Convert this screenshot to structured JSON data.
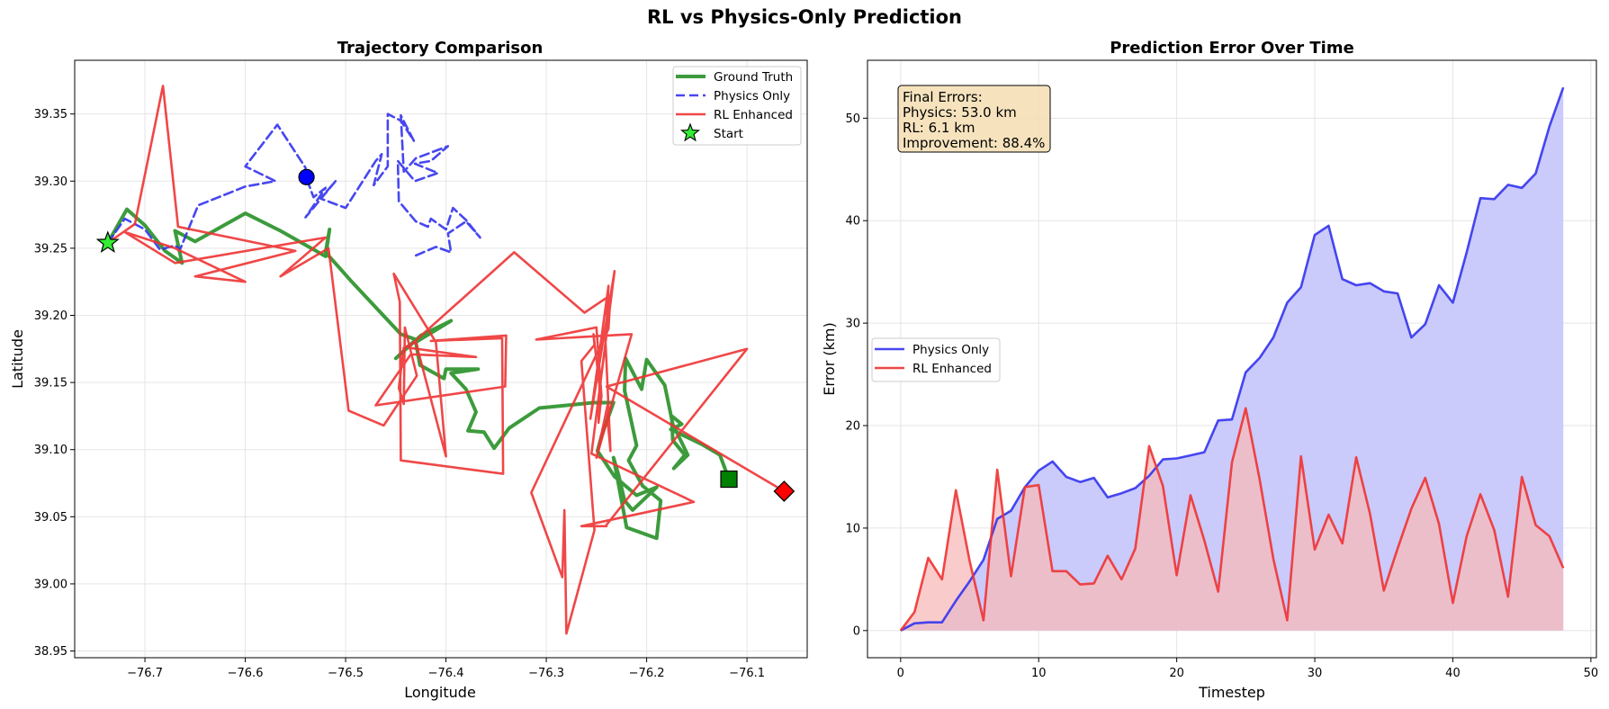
{
  "figure_title": "RL vs Physics-Only Prediction",
  "colors": {
    "ground_truth": "#1a8a1a",
    "physics": "#3333ee",
    "rl": "#ee3333",
    "physics_fill": "#c4c4fb",
    "rl_fill": "#f7b9b9",
    "start": "#33ee33",
    "annot_bg": "#f5deb3"
  },
  "chart_data": [
    {
      "type": "line",
      "title": "Trajectory Comparison",
      "xlabel": "Longitude",
      "ylabel": "Latitude",
      "xlim": [
        -76.77,
        -76.04
      ],
      "ylim": [
        38.945,
        39.39
      ],
      "xticks": [
        -76.7,
        -76.6,
        -76.5,
        -76.4,
        -76.3,
        -76.2,
        -76.1
      ],
      "xtick_labels": [
        "−76.7",
        "−76.6",
        "−76.5",
        "−76.4",
        "−76.3",
        "−76.2",
        "−76.1"
      ],
      "yticks": [
        38.95,
        39.0,
        39.05,
        39.1,
        39.15,
        39.2,
        39.25,
        39.3,
        39.35
      ],
      "ytick_labels": [
        "38.95",
        "39.00",
        "39.05",
        "39.10",
        "39.15",
        "39.20",
        "39.25",
        "39.30",
        "39.35"
      ],
      "grid": true,
      "legend_position": "top-right",
      "series": [
        {
          "name": "Ground Truth",
          "style": "solid-thick",
          "points": [
            [
              -76.737,
              39.254
            ],
            [
              -76.718,
              39.279
            ],
            [
              -76.7,
              39.267
            ],
            [
              -76.68,
              39.248
            ],
            [
              -76.663,
              39.239
            ],
            [
              -76.67,
              39.263
            ],
            [
              -76.65,
              39.255
            ],
            [
              -76.6,
              39.276
            ],
            [
              -76.565,
              39.263
            ],
            [
              -76.52,
              39.244
            ],
            [
              -76.516,
              39.264
            ],
            [
              -76.52,
              39.247
            ],
            [
              -76.495,
              39.226
            ],
            [
              -76.445,
              39.186
            ],
            [
              -76.43,
              39.182
            ],
            [
              -76.45,
              39.168
            ],
            [
              -76.425,
              39.185
            ],
            [
              -76.395,
              39.196
            ],
            [
              -76.43,
              39.18
            ],
            [
              -76.426,
              39.163
            ],
            [
              -76.402,
              39.153
            ],
            [
              -76.4,
              39.16
            ],
            [
              -76.368,
              39.16
            ],
            [
              -76.395,
              39.157
            ],
            [
              -76.38,
              39.145
            ],
            [
              -76.37,
              39.128
            ],
            [
              -76.378,
              39.114
            ],
            [
              -76.362,
              39.113
            ],
            [
              -76.352,
              39.101
            ],
            [
              -76.337,
              39.116
            ],
            [
              -76.307,
              39.131
            ],
            [
              -76.253,
              39.135
            ],
            [
              -76.233,
              39.135
            ],
            [
              -76.245,
              39.11
            ],
            [
              -76.249,
              39.099
            ],
            [
              -76.232,
              39.08
            ],
            [
              -76.21,
              39.066
            ],
            [
              -76.19,
              39.072
            ],
            [
              -76.214,
              39.055
            ],
            [
              -76.222,
              39.062
            ],
            [
              -76.228,
              39.081
            ],
            [
              -76.233,
              39.094
            ],
            [
              -76.22,
              39.042
            ],
            [
              -76.19,
              39.034
            ],
            [
              -76.186,
              39.062
            ],
            [
              -76.204,
              39.073
            ],
            [
              -76.218,
              39.092
            ],
            [
              -76.21,
              39.103
            ],
            [
              -76.222,
              39.144
            ],
            [
              -76.221,
              39.168
            ],
            [
              -76.205,
              39.145
            ],
            [
              -76.2,
              39.167
            ],
            [
              -76.182,
              39.148
            ],
            [
              -76.174,
              39.119
            ],
            [
              -76.159,
              39.096
            ],
            [
              -76.173,
              39.086
            ],
            [
              -76.162,
              39.096
            ],
            [
              -76.174,
              39.107
            ],
            [
              -76.175,
              39.125
            ],
            [
              -76.165,
              39.119
            ],
            [
              -76.176,
              39.115
            ],
            [
              -76.17,
              39.113
            ],
            [
              -76.145,
              39.104
            ],
            [
              -76.127,
              39.096
            ],
            [
              -76.118,
              39.078
            ]
          ]
        },
        {
          "name": "Physics Only",
          "style": "dashed",
          "points": [
            [
              -76.737,
              39.254
            ],
            [
              -76.72,
              39.272
            ],
            [
              -76.7,
              39.264
            ],
            [
              -76.685,
              39.249
            ],
            [
              -76.67,
              39.252
            ],
            [
              -76.665,
              39.249
            ],
            [
              -76.647,
              39.282
            ],
            [
              -76.63,
              39.287
            ],
            [
              -76.6,
              39.296
            ],
            [
              -76.57,
              39.3
            ],
            [
              -76.6,
              39.311
            ],
            [
              -76.568,
              39.342
            ],
            [
              -76.54,
              39.31
            ],
            [
              -76.539,
              39.302
            ],
            [
              -76.532,
              39.288
            ],
            [
              -76.52,
              39.295
            ],
            [
              -76.54,
              39.273
            ],
            [
              -76.51,
              39.3
            ],
            [
              -76.525,
              39.287
            ],
            [
              -76.5,
              39.28
            ],
            [
              -76.47,
              39.315
            ],
            [
              -76.464,
              39.32
            ],
            [
              -76.472,
              39.297
            ],
            [
              -76.458,
              39.311
            ],
            [
              -76.458,
              39.35
            ],
            [
              -76.445,
              39.345
            ],
            [
              -76.432,
              39.33
            ],
            [
              -76.445,
              39.349
            ],
            [
              -76.442,
              39.307
            ],
            [
              -76.43,
              39.317
            ],
            [
              -76.398,
              39.326
            ],
            [
              -76.415,
              39.315
            ],
            [
              -76.431,
              39.313
            ],
            [
              -76.408,
              39.306
            ],
            [
              -76.431,
              39.3
            ],
            [
              -76.448,
              39.315
            ],
            [
              -76.447,
              39.285
            ],
            [
              -76.43,
              39.27
            ],
            [
              -76.418,
              39.266
            ],
            [
              -76.415,
              39.272
            ],
            [
              -76.4,
              39.264
            ],
            [
              -76.393,
              39.28
            ],
            [
              -76.38,
              39.271
            ],
            [
              -76.366,
              39.258
            ],
            [
              -76.38,
              39.27
            ],
            [
              -76.398,
              39.261
            ],
            [
              -76.395,
              39.247
            ],
            [
              -76.41,
              39.251
            ],
            [
              -76.432,
              39.244
            ]
          ]
        },
        {
          "name": "RL Enhanced",
          "style": "solid",
          "points": [
            [
              -76.737,
              39.254
            ],
            [
              -76.71,
              39.268
            ],
            [
              -76.682,
              39.371
            ],
            [
              -76.667,
              39.266
            ],
            [
              -76.55,
              39.248
            ],
            [
              -76.65,
              39.229
            ],
            [
              -76.6,
              39.225
            ],
            [
              -76.67,
              39.25
            ],
            [
              -76.72,
              39.262
            ],
            [
              -76.67,
              39.239
            ],
            [
              -76.52,
              39.258
            ],
            [
              -76.565,
              39.229
            ],
            [
              -76.517,
              39.25
            ],
            [
              -76.497,
              39.129
            ],
            [
              -76.462,
              39.118
            ],
            [
              -76.429,
              39.155
            ],
            [
              -76.441,
              39.191
            ],
            [
              -76.442,
              39.134
            ],
            [
              -76.447,
              39.146
            ],
            [
              -76.442,
              39.176
            ],
            [
              -76.43,
              39.18
            ],
            [
              -76.4,
              39.095
            ],
            [
              -76.41,
              39.18
            ],
            [
              -76.452,
              39.231
            ],
            [
              -76.446,
              39.21
            ],
            [
              -76.445,
              39.092
            ],
            [
              -76.343,
              39.082
            ],
            [
              -76.344,
              39.183
            ],
            [
              -76.415,
              39.181
            ],
            [
              -76.34,
              39.185
            ],
            [
              -76.341,
              39.147
            ],
            [
              -76.47,
              39.133
            ],
            [
              -76.435,
              39.171
            ],
            [
              -76.37,
              39.169
            ],
            [
              -76.438,
              39.176
            ],
            [
              -76.332,
              39.247
            ],
            [
              -76.262,
              39.202
            ],
            [
              -76.236,
              39.215
            ],
            [
              -76.238,
              39.19
            ],
            [
              -76.315,
              39.068
            ],
            [
              -76.284,
              39.005
            ],
            [
              -76.282,
              39.055
            ],
            [
              -76.28,
              38.963
            ],
            [
              -76.252,
              39.04
            ],
            [
              -76.265,
              39.166
            ],
            [
              -76.252,
              39.178
            ],
            [
              -76.253,
              39.186
            ],
            [
              -76.247,
              39.148
            ],
            [
              -76.248,
              39.12
            ],
            [
              -76.245,
              39.14
            ],
            [
              -76.25,
              39.191
            ],
            [
              -76.31,
              39.182
            ],
            [
              -76.215,
              39.186
            ],
            [
              -76.25,
              39.094
            ],
            [
              -76.239,
              39.133
            ],
            [
              -76.239,
              39.123
            ],
            [
              -76.236,
              39.099
            ],
            [
              -76.241,
              39.18
            ],
            [
              -76.238,
              39.222
            ],
            [
              -76.256,
              39.123
            ],
            [
              -76.232,
              39.233
            ],
            [
              -76.255,
              39.097
            ],
            [
              -76.153,
              39.061
            ],
            [
              -76.265,
              39.043
            ],
            [
              -76.24,
              39.043
            ],
            [
              -76.24,
              39.044
            ],
            [
              -76.1,
              39.175
            ],
            [
              -76.24,
              39.147
            ],
            [
              -76.063,
              39.069
            ]
          ]
        }
      ],
      "markers": [
        {
          "name": "Start",
          "shape": "star",
          "point": [
            -76.737,
            39.254
          ]
        },
        {
          "shape": "circle",
          "point": [
            -76.539,
            39.303
          ]
        },
        {
          "shape": "square",
          "point": [
            -76.118,
            39.078
          ]
        },
        {
          "shape": "diamond",
          "point": [
            -76.063,
            39.069
          ]
        }
      ]
    },
    {
      "type": "area",
      "title": "Prediction Error Over Time",
      "xlabel": "Timestep",
      "ylabel": "Error (km)",
      "xlim": [
        -2.4,
        50.4
      ],
      "ylim": [
        -2.65,
        55.65
      ],
      "xticks": [
        0,
        10,
        20,
        30,
        40,
        50
      ],
      "xtick_labels": [
        "0",
        "10",
        "20",
        "30",
        "40",
        "50"
      ],
      "yticks": [
        0,
        10,
        20,
        30,
        40,
        50
      ],
      "ytick_labels": [
        "0",
        "10",
        "20",
        "30",
        "40",
        "50"
      ],
      "grid": true,
      "legend_position": "center-left",
      "x": [
        0,
        1,
        2,
        3,
        4,
        5,
        6,
        7,
        8,
        9,
        10,
        11,
        12,
        13,
        14,
        15,
        16,
        17,
        18,
        19,
        20,
        21,
        22,
        23,
        24,
        25,
        26,
        27,
        28,
        29,
        30,
        31,
        32,
        33,
        34,
        35,
        36,
        37,
        38,
        39,
        40,
        41,
        42,
        43,
        44,
        45,
        46,
        47,
        48
      ],
      "series": [
        {
          "name": "Physics Only",
          "values": [
            0.0,
            0.7,
            0.8,
            0.8,
            2.9,
            4.8,
            6.9,
            10.9,
            11.7,
            14.0,
            15.6,
            16.5,
            15.0,
            14.5,
            14.9,
            13.0,
            13.4,
            13.9,
            15.1,
            16.7,
            16.8,
            17.1,
            17.4,
            20.5,
            20.6,
            25.2,
            26.6,
            28.6,
            32.0,
            33.5,
            38.6,
            39.5,
            34.3,
            33.7,
            33.9,
            33.1,
            32.9,
            28.6,
            29.9,
            33.7,
            32.0,
            36.9,
            42.2,
            42.1,
            43.5,
            43.2,
            44.6,
            49.2,
            53.0
          ]
        },
        {
          "name": "RL Enhanced",
          "values": [
            0.0,
            1.8,
            7.1,
            5.0,
            13.7,
            6.8,
            1.0,
            15.7,
            5.3,
            14.0,
            14.2,
            5.8,
            5.8,
            4.5,
            4.6,
            7.3,
            5.0,
            8.0,
            18.0,
            14.1,
            5.4,
            13.2,
            8.8,
            3.8,
            16.4,
            21.7,
            14.8,
            7.0,
            1.0,
            17.0,
            7.9,
            11.3,
            8.5,
            16.9,
            11.4,
            3.9,
            8.0,
            11.9,
            14.9,
            10.4,
            2.7,
            9.2,
            13.3,
            9.8,
            3.3,
            15.0,
            10.3,
            9.2,
            6.1
          ]
        }
      ],
      "annotation": {
        "lines": [
          "Final Errors:",
          "Physics: 53.0 km",
          "RL: 6.1 km",
          "Improvement: 88.4%"
        ]
      }
    }
  ]
}
